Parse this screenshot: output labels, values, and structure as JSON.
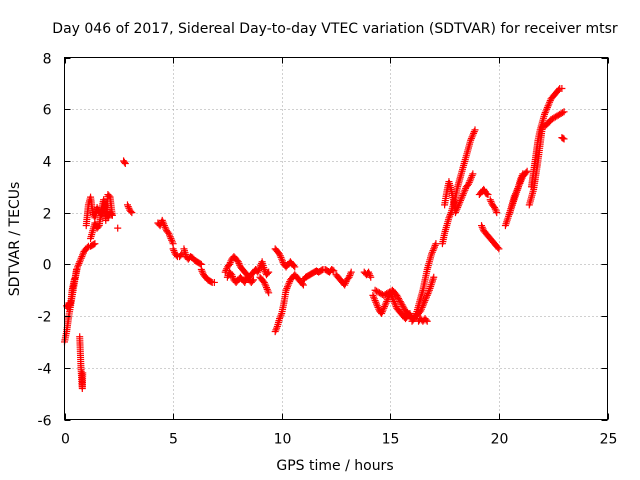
{
  "chart_data": {
    "type": "scatter",
    "title": "Day 046 of 2017, Sidereal Day-to-day VTEC variation (SDTVAR) for receiver mtsr",
    "xlabel": "GPS time / hours",
    "ylabel": "SDTVAR / TECUs",
    "xlim": [
      0,
      25
    ],
    "ylim": [
      -6,
      8
    ],
    "xticks": [
      "0",
      "5",
      "10",
      "15",
      "20",
      "25"
    ],
    "yticks": [
      "-6",
      "-4",
      "-2",
      "0",
      "2",
      "4",
      "6",
      "8"
    ],
    "grid": true,
    "marker": "+",
    "color": "#ff0000",
    "segments": [
      {
        "x": [
          0.0,
          0.1,
          0.2,
          0.3,
          0.4,
          0.5,
          0.6,
          0.7,
          0.8,
          0.9,
          1.0,
          1.1,
          1.2,
          1.3,
          1.4
        ],
        "y": [
          -3.0,
          -2.6,
          -2.0,
          -1.5,
          -1.0,
          -0.5,
          -0.1,
          0.1,
          0.3,
          0.5,
          0.6,
          0.7,
          0.7,
          0.75,
          0.8
        ]
      },
      {
        "x": [
          0.1,
          0.15,
          0.2,
          0.25,
          0.3,
          0.35,
          0.4,
          0.45,
          0.5,
          0.55
        ],
        "y": [
          -1.6,
          -1.7,
          -1.5,
          -1.6,
          -1.4,
          -1.0,
          -0.8,
          -0.6,
          -0.5,
          -0.2
        ]
      },
      {
        "x": [
          0.7,
          0.72,
          0.74,
          0.76,
          0.78,
          0.8,
          0.82,
          0.84
        ],
        "y": [
          -2.8,
          -3.2,
          -3.6,
          -4.0,
          -4.3,
          -4.6,
          -4.8,
          -4.2
        ]
      },
      {
        "x": [
          1.0,
          1.1,
          1.2,
          1.3,
          1.4,
          1.5,
          1.6,
          1.7,
          1.8,
          1.9,
          2.0,
          2.1,
          2.2
        ],
        "y": [
          1.5,
          2.3,
          2.6,
          2.0,
          1.8,
          2.2,
          2.0,
          1.9,
          2.1,
          2.3,
          1.8,
          2.0,
          1.9
        ]
      },
      {
        "x": [
          1.2,
          1.3,
          1.4,
          1.5,
          1.6,
          1.7,
          1.8,
          1.9,
          2.0,
          2.1,
          2.2
        ],
        "y": [
          1.0,
          1.3,
          1.6,
          1.4,
          1.5,
          2.1,
          2.5,
          1.7,
          2.7,
          2.6,
          1.9
        ]
      },
      {
        "x": [
          2.45
        ],
        "y": [
          1.4
        ]
      },
      {
        "x": [
          2.72,
          2.8
        ],
        "y": [
          4.0,
          3.9
        ]
      },
      {
        "x": [
          2.9,
          3.0,
          3.1
        ],
        "y": [
          2.3,
          2.1,
          2.0
        ]
      },
      {
        "x": [
          4.3,
          4.4,
          4.5,
          4.6,
          4.7,
          4.8,
          4.9,
          5.0
        ],
        "y": [
          1.6,
          1.5,
          1.7,
          1.5,
          1.3,
          1.2,
          1.0,
          0.8
        ]
      },
      {
        "x": [
          5.0,
          5.1,
          5.2,
          5.3,
          5.4
        ],
        "y": [
          0.6,
          0.4,
          0.3,
          0.3,
          0.4
        ]
      },
      {
        "x": [
          5.5,
          5.6,
          5.7,
          5.8,
          5.9,
          6.0,
          6.1,
          6.2,
          6.3
        ],
        "y": [
          0.6,
          0.3,
          0.2,
          0.3,
          0.25,
          0.15,
          0.1,
          0.05,
          0.0
        ]
      },
      {
        "x": [
          6.3,
          6.4,
          6.5,
          6.6,
          6.7,
          6.8,
          6.9
        ],
        "y": [
          -0.2,
          -0.4,
          -0.5,
          -0.6,
          -0.65,
          -0.7,
          -0.7
        ]
      },
      {
        "x": [
          7.4,
          7.5,
          7.6,
          7.7,
          7.8,
          7.9,
          8.0,
          8.1,
          8.2,
          8.3,
          8.4,
          8.5,
          8.6,
          8.7,
          8.8,
          8.9,
          9.0,
          9.1,
          9.2,
          9.3,
          9.4
        ],
        "y": [
          -0.3,
          -0.1,
          0.0,
          0.2,
          0.3,
          0.2,
          0.1,
          -0.1,
          -0.2,
          -0.3,
          -0.4,
          -0.5,
          -0.4,
          -0.3,
          -0.2,
          -0.3,
          -0.1,
          0.1,
          -0.2,
          -0.4,
          -0.3
        ]
      },
      {
        "x": [
          7.5,
          7.6,
          7.7,
          7.8,
          7.9,
          8.0,
          8.1,
          8.2,
          8.3,
          8.4,
          8.5,
          8.6,
          8.7
        ],
        "y": [
          -0.5,
          -0.3,
          -0.4,
          -0.6,
          -0.7,
          -0.6,
          -0.5,
          -0.6,
          -0.7,
          -0.5,
          -0.6,
          -0.7,
          -0.6
        ]
      },
      {
        "x": [
          9.0,
          9.1,
          9.2,
          9.3,
          9.4
        ],
        "y": [
          -0.5,
          -0.6,
          -0.7,
          -0.9,
          -1.1
        ]
      },
      {
        "x": [
          9.7,
          9.8,
          9.9,
          10.0,
          10.1,
          10.2,
          10.3,
          10.4,
          10.5,
          10.6
        ],
        "y": [
          0.6,
          0.5,
          0.4,
          0.2,
          0.0,
          -0.1,
          0.0,
          0.1,
          0.0,
          -0.1
        ]
      },
      {
        "x": [
          9.7,
          9.8,
          9.9,
          10.0,
          10.1,
          10.2,
          10.3,
          10.4,
          10.5,
          10.6,
          10.7,
          10.8,
          10.9,
          11.0
        ],
        "y": [
          -2.6,
          -2.4,
          -2.1,
          -1.9,
          -1.5,
          -1.0,
          -0.8,
          -0.6,
          -0.5,
          -0.4,
          -0.5,
          -0.6,
          -0.7,
          -0.8
        ]
      },
      {
        "x": [
          11.0,
          11.1,
          11.2,
          11.3,
          11.4,
          11.5,
          11.6,
          11.7,
          11.8,
          11.9,
          12.0,
          12.1,
          12.2,
          12.3,
          12.4
        ],
        "y": [
          -0.6,
          -0.5,
          -0.45,
          -0.4,
          -0.35,
          -0.3,
          -0.25,
          -0.3,
          -0.25,
          -0.2,
          -0.2,
          -0.25,
          -0.3,
          -0.2,
          -0.25
        ]
      },
      {
        "x": [
          12.5,
          12.6,
          12.7,
          12.8,
          12.9,
          13.0,
          13.1,
          13.2
        ],
        "y": [
          -0.4,
          -0.5,
          -0.6,
          -0.7,
          -0.8,
          -0.6,
          -0.5,
          -0.3
        ]
      },
      {
        "x": [
          13.8,
          13.9,
          14.0,
          14.1
        ],
        "y": [
          -0.3,
          -0.4,
          -0.3,
          -0.5
        ]
      },
      {
        "x": [
          14.2,
          14.3,
          14.4,
          14.5,
          14.6,
          14.7,
          14.8,
          14.9,
          15.0,
          15.1,
          15.2,
          15.3,
          15.4,
          15.5,
          15.6,
          15.7,
          15.8,
          15.9,
          16.0
        ],
        "y": [
          -1.2,
          -1.4,
          -1.6,
          -1.8,
          -1.9,
          -1.7,
          -1.5,
          -1.3,
          -1.1,
          -1.3,
          -1.5,
          -1.7,
          -1.8,
          -1.9,
          -2.0,
          -2.1,
          -2.0,
          -1.9,
          -2.1
        ]
      },
      {
        "x": [
          14.3,
          14.5,
          14.7,
          14.9,
          15.1,
          15.3,
          15.5,
          15.7,
          15.9
        ],
        "y": [
          -1.0,
          -1.1,
          -1.2,
          -1.1,
          -1.0,
          -1.2,
          -1.5,
          -1.8,
          -2.0
        ]
      },
      {
        "x": [
          16.0,
          16.2,
          16.4,
          16.6,
          16.8,
          17.0
        ],
        "y": [
          -2.1,
          -2.0,
          -1.8,
          -1.4,
          -1.0,
          -0.5
        ]
      },
      {
        "x": [
          16.0,
          16.1,
          16.2,
          16.3,
          16.4,
          16.5,
          16.6,
          16.7,
          16.8,
          16.9,
          17.0,
          17.1
        ],
        "y": [
          -2.2,
          -2.1,
          -1.9,
          -1.6,
          -1.3,
          -1.0,
          -0.6,
          -0.2,
          0.1,
          0.4,
          0.6,
          0.8
        ]
      },
      {
        "x": [
          16.3,
          16.4,
          16.5,
          16.6,
          16.7
        ],
        "y": [
          -2.2,
          -2.1,
          -2.2,
          -2.1,
          -2.2
        ]
      },
      {
        "x": [
          17.4,
          17.5,
          17.6,
          17.7,
          17.8,
          17.9,
          18.0,
          18.1,
          18.2,
          18.3,
          18.4,
          18.5,
          18.6,
          18.7,
          18.8,
          18.9
        ],
        "y": [
          0.8,
          1.2,
          1.5,
          1.8,
          2.0,
          2.3,
          2.6,
          3.0,
          3.3,
          3.6,
          3.9,
          4.2,
          4.5,
          4.8,
          5.0,
          5.2
        ]
      },
      {
        "x": [
          17.5,
          17.6,
          17.7,
          17.8,
          17.9,
          18.0,
          18.1,
          18.2,
          18.3,
          18.4,
          18.5,
          18.6,
          18.7,
          18.8
        ],
        "y": [
          2.3,
          2.8,
          3.2,
          2.9,
          2.5,
          2.0,
          2.2,
          2.4,
          2.6,
          2.8,
          3.0,
          3.1,
          3.3,
          3.5
        ]
      },
      {
        "x": [
          19.1,
          19.2,
          19.3,
          19.4,
          19.5
        ],
        "y": [
          2.7,
          2.8,
          2.9,
          2.75,
          2.7
        ]
      },
      {
        "x": [
          19.2,
          19.3,
          19.4,
          19.5,
          19.6,
          19.7,
          19.8,
          19.9,
          20.0
        ],
        "y": [
          1.5,
          1.3,
          1.2,
          1.1,
          1.0,
          0.9,
          0.8,
          0.7,
          0.6
        ]
      },
      {
        "x": [
          19.6,
          19.7,
          19.8,
          19.9
        ],
        "y": [
          2.5,
          2.3,
          2.2,
          2.0
        ]
      },
      {
        "x": [
          20.3,
          20.5,
          20.7,
          20.9,
          21.1,
          21.3
        ],
        "y": [
          1.5,
          2.0,
          2.5,
          3.0,
          3.4,
          3.6
        ]
      },
      {
        "x": [
          20.5,
          20.6,
          20.7,
          20.8,
          20.9,
          21.0,
          21.1
        ],
        "y": [
          2.0,
          2.3,
          2.6,
          2.8,
          3.0,
          3.3,
          3.5
        ]
      },
      {
        "x": [
          21.5,
          21.6,
          21.7,
          21.8,
          21.9,
          22.0,
          22.1,
          22.2,
          22.3,
          22.4,
          22.5,
          22.6,
          22.7,
          22.8,
          22.9
        ],
        "y": [
          3.0,
          3.6,
          4.2,
          4.8,
          5.2,
          5.5,
          5.8,
          6.0,
          6.2,
          6.4,
          6.5,
          6.6,
          6.7,
          6.8,
          6.8
        ]
      },
      {
        "x": [
          21.4,
          21.6,
          21.8,
          22.0,
          22.2,
          22.4,
          22.6,
          22.8,
          23.0
        ],
        "y": [
          2.3,
          2.9,
          4.0,
          5.3,
          5.4,
          5.6,
          5.7,
          5.8,
          5.9
        ]
      },
      {
        "x": [
          22.9,
          23.0
        ],
        "y": [
          4.9,
          4.85
        ]
      }
    ]
  }
}
